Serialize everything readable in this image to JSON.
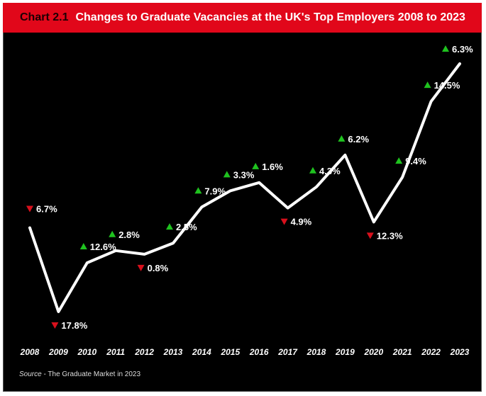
{
  "header": {
    "chart_number": "Chart 2.1",
    "title": "Changes to Graduate Vacancies at the UK's Top Employers 2008 to 2023"
  },
  "source": {
    "prefix": "Source",
    "text": " - The Graduate Market in 2023"
  },
  "colors": {
    "up": "#1fc21f",
    "down": "#d8101c",
    "line": "#ffffff",
    "header": "#e1071a"
  },
  "chart_data": {
    "type": "line",
    "title": "Changes to Graduate Vacancies at the UK's Top Employers 2008 to 2023",
    "x": [
      "2008",
      "2009",
      "2010",
      "2011",
      "2012",
      "2013",
      "2014",
      "2015",
      "2016",
      "2017",
      "2018",
      "2019",
      "2020",
      "2021",
      "2022",
      "2023"
    ],
    "series": [
      {
        "values": [
          -6.7,
          -17.8,
          12.6,
          2.8,
          -0.8,
          2.5,
          7.9,
          3.3,
          1.6,
          -4.9,
          4.3,
          6.2,
          -12.3,
          9.4,
          14.5,
          6.3
        ],
        "labels": [
          "6.7%",
          "17.8%",
          "12.6%",
          "2.8%",
          "0.8%",
          "2.5%",
          "7.9%",
          "3.3%",
          "1.6%",
          "4.9%",
          "4.3%",
          "6.2%",
          "12.3%",
          "9.4%",
          "14.5%",
          "6.3%"
        ],
        "direction": [
          "down",
          "down",
          "up",
          "up",
          "down",
          "up",
          "up",
          "up",
          "up",
          "down",
          "up",
          "up",
          "down",
          "up",
          "up",
          "up"
        ]
      }
    ],
    "ylabel": "",
    "xlabel": "",
    "grid": false,
    "legend": "none"
  }
}
